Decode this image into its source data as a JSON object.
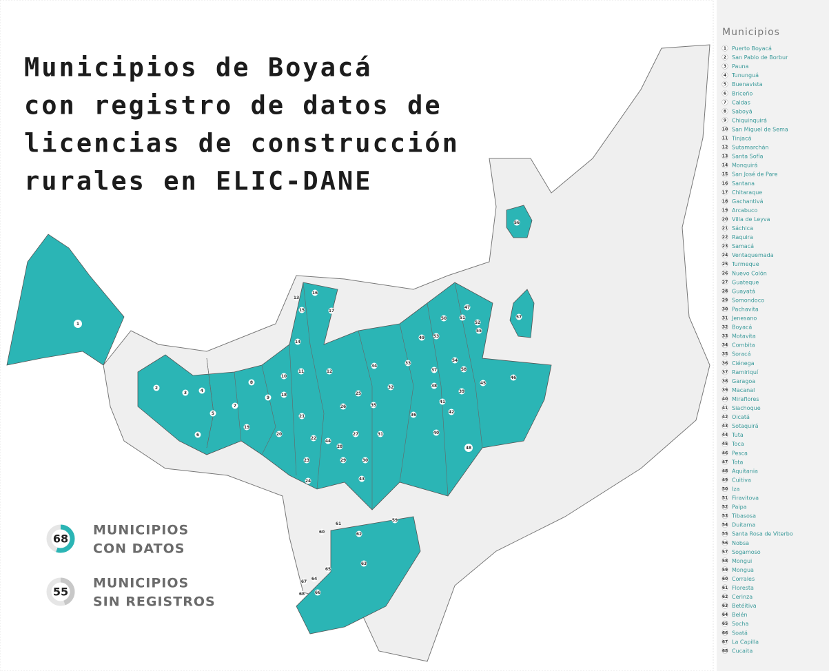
{
  "title_lines": [
    "Municipios de Boyacá",
    "con registro de datos de",
    "licencias de construcción",
    "rurales en ELIC-DANE"
  ],
  "legend": [
    {
      "count": 68,
      "lines": [
        "MUNICIPIOS",
        "CON DATOS"
      ],
      "color": "#2bb5b5"
    },
    {
      "count": 55,
      "lines": [
        "MUNICIPIOS",
        "SIN REGISTROS"
      ],
      "color": "#c8c8c8"
    }
  ],
  "municipios": {
    "title": "Municipios",
    "items": [
      {
        "number": 1,
        "name": "Puerto Boyacá"
      },
      {
        "number": 2,
        "name": "San Pablo de Borbur"
      },
      {
        "number": 3,
        "name": "Pauna"
      },
      {
        "number": 4,
        "name": "Tununguá"
      },
      {
        "number": 5,
        "name": "Buenavista"
      },
      {
        "number": 6,
        "name": "Briceño"
      },
      {
        "number": 7,
        "name": "Caldas"
      },
      {
        "number": 8,
        "name": "Saboyá"
      },
      {
        "number": 9,
        "name": "Chiquinquirá"
      },
      {
        "number": 10,
        "name": "San Miguel de Sema"
      },
      {
        "number": 11,
        "name": "Tinjacá"
      },
      {
        "number": 12,
        "name": "Sutamarchán"
      },
      {
        "number": 13,
        "name": "Santa Sofía"
      },
      {
        "number": 14,
        "name": "Monquirá"
      },
      {
        "number": 15,
        "name": "San José de Pare"
      },
      {
        "number": 16,
        "name": "Santana"
      },
      {
        "number": 17,
        "name": "Chitaraque"
      },
      {
        "number": 18,
        "name": "Gachantivá"
      },
      {
        "number": 19,
        "name": "Arcabuco"
      },
      {
        "number": 20,
        "name": "Villa de Leyva"
      },
      {
        "number": 21,
        "name": "Sáchica"
      },
      {
        "number": 22,
        "name": "Raquira"
      },
      {
        "number": 23,
        "name": "Samacá"
      },
      {
        "number": 24,
        "name": "Ventaquemada"
      },
      {
        "number": 25,
        "name": "Turmeque"
      },
      {
        "number": 26,
        "name": "Nuevo Colón"
      },
      {
        "number": 27,
        "name": "Guateque"
      },
      {
        "number": 28,
        "name": "Guayatá"
      },
      {
        "number": 29,
        "name": "Somondoco"
      },
      {
        "number": 30,
        "name": "Pachavita"
      },
      {
        "number": 31,
        "name": "Jenesano"
      },
      {
        "number": 32,
        "name": "Boyacá"
      },
      {
        "number": 33,
        "name": "Motavita"
      },
      {
        "number": 34,
        "name": "Combita"
      },
      {
        "number": 35,
        "name": "Soracá"
      },
      {
        "number": 36,
        "name": "Ciénega"
      },
      {
        "number": 37,
        "name": "Ramiriquí"
      },
      {
        "number": 38,
        "name": "Garagoa"
      },
      {
        "number": 39,
        "name": "Macanal"
      },
      {
        "number": 40,
        "name": "Miraflores"
      },
      {
        "number": 41,
        "name": "Siachoque"
      },
      {
        "number": 42,
        "name": "Oicatá"
      },
      {
        "number": 43,
        "name": "Sotaquirá"
      },
      {
        "number": 44,
        "name": "Tuta"
      },
      {
        "number": 45,
        "name": "Toca"
      },
      {
        "number": 46,
        "name": "Pesca"
      },
      {
        "number": 47,
        "name": "Tota"
      },
      {
        "number": 48,
        "name": "Aquitania"
      },
      {
        "number": 49,
        "name": "Cuitiva"
      },
      {
        "number": 50,
        "name": "Iza"
      },
      {
        "number": 51,
        "name": "Firavitova"
      },
      {
        "number": 52,
        "name": "Paipa"
      },
      {
        "number": 53,
        "name": "Tibasosa"
      },
      {
        "number": 54,
        "name": "Duitama"
      },
      {
        "number": 55,
        "name": "Santa Rosa de Viterbo"
      },
      {
        "number": 56,
        "name": "Nobsa"
      },
      {
        "number": 57,
        "name": "Sogamoso"
      },
      {
        "number": 58,
        "name": "Mongui"
      },
      {
        "number": 59,
        "name": "Mongua"
      },
      {
        "number": 60,
        "name": "Corrales"
      },
      {
        "number": 61,
        "name": "Floresta"
      },
      {
        "number": 62,
        "name": "Cerinza"
      },
      {
        "number": 63,
        "name": "Betéitiva"
      },
      {
        "number": 64,
        "name": "Belén"
      },
      {
        "number": 65,
        "name": "Socha"
      },
      {
        "number": 66,
        "name": "Soatá"
      },
      {
        "number": 67,
        "name": "La Capilla"
      },
      {
        "number": 68,
        "name": "Cucaita"
      }
    ]
  }
}
